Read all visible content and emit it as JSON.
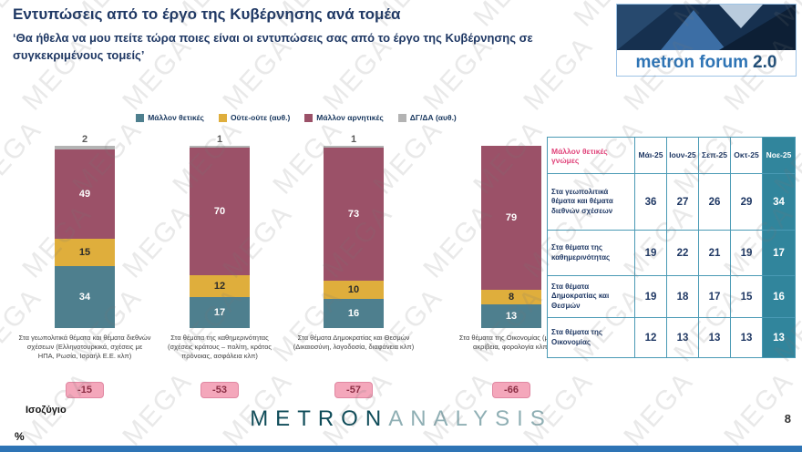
{
  "header": {
    "title": "Εντυπώσεις από το έργο της Κυβέρνησης ανά τομέα",
    "subtitle": "‘Θα ήθελα να μου πείτε τώρα ποιες είναι οι εντυπώσεις σας από το έργο της Κυβέρνησης σε συγκεκριμένους τομείς’",
    "logo_name": "metron forum",
    "logo_version": "2.0"
  },
  "legend": [
    {
      "label": "Μάλλον θετικές",
      "color": "#4e7f8e"
    },
    {
      "label": "Ούτε-ούτε (αυθ.)",
      "color": "#dfae3c"
    },
    {
      "label": "Μάλλον αρνητικές",
      "color": "#9b5168"
    },
    {
      "label": "ΔΓ/ΔΑ (αυθ.)",
      "color": "#b3b3b3"
    }
  ],
  "chart_data": {
    "type": "bar",
    "stacked": true,
    "unit": "%",
    "ylim": [
      0,
      100
    ],
    "categories": [
      "Στα γεωπολιτικά θέματα και θέματα διεθνών σχέσεων (Ελληνοτουρκικά, σχέσεις με ΗΠΑ, Ρωσία, Ισραήλ Ε.Ε. κλπ)",
      "Στα θέματα της καθημερινότητας (σχέσεις κράτους – πολίτη, κράτος πρόνοιας, ασφάλεια κλπ)",
      "Στα θέματα Δημοκρατίας και Θεσμών (Δικαιοσύνη, λογοδοσία, διαφάνεια κλπ)",
      "Στα θέματα της Οικονομίας (μισθοί ακρίβεια, φορολογία κλπ)"
    ],
    "series": [
      {
        "name": "Μάλλον θετικές",
        "values": [
          34,
          17,
          16,
          13
        ]
      },
      {
        "name": "Ούτε-ούτε (αυθ.)",
        "values": [
          15,
          12,
          10,
          8
        ]
      },
      {
        "name": "Μάλλον αρνητικές",
        "values": [
          49,
          70,
          73,
          79
        ]
      },
      {
        "name": "ΔΓ/ΔΑ (αυθ.)",
        "values": [
          2,
          1,
          1,
          null
        ]
      }
    ],
    "balances": [
      -15,
      -53,
      -57,
      -66
    ]
  },
  "table": {
    "corner": "Μάλλον θετικές γνώμες",
    "columns": [
      "Μάι-25",
      "Ιουν-25",
      "Σεπ-25",
      "Οκτ-25",
      "Νοε-25"
    ],
    "rows": [
      {
        "label": "Στα γεωπολιτικά θέματα και θέματα διεθνών σχέσεων",
        "values": [
          36,
          27,
          26,
          29,
          34
        ]
      },
      {
        "label": "Στα θέματα της καθημερινότητας",
        "values": [
          19,
          22,
          21,
          19,
          17
        ]
      },
      {
        "label": "Στα θέματα Δημοκρατίας και Θεσμών",
        "values": [
          19,
          18,
          17,
          15,
          16
        ]
      },
      {
        "label": "Στα θέματα της Οικονομίας",
        "values": [
          12,
          13,
          13,
          13,
          13
        ]
      }
    ]
  },
  "footer": {
    "balance_label": "Ισοζύγιο",
    "percent": "%",
    "brand_metron": "METRON",
    "brand_analysis": "ANALYSIS",
    "page_number": "8"
  },
  "watermark": "MEGA"
}
